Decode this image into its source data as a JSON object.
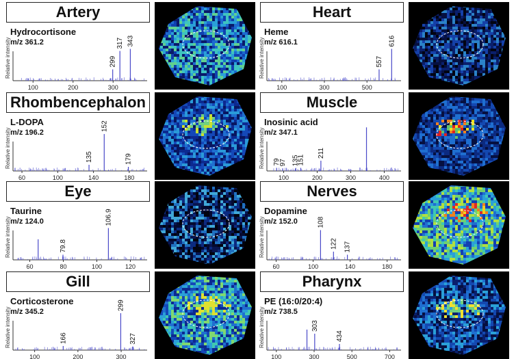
{
  "panels": [
    {
      "title": "Artery",
      "compound": "Hydrocortisone",
      "mz": "m/z 361.2",
      "ylabel": "Relative intensity",
      "xticks": [
        {
          "v": 100,
          "label": "100"
        },
        {
          "v": 200,
          "label": "200"
        },
        {
          "v": 300,
          "label": "300"
        }
      ],
      "xrange": [
        50,
        385
      ],
      "peaks": [
        {
          "x": 299,
          "h": 0.22,
          "label": "299"
        },
        {
          "x": 317,
          "h": 0.58,
          "label": "317"
        },
        {
          "x": 343,
          "h": 0.62,
          "label": "343"
        }
      ],
      "tissue": {
        "colors": [
          "#0a1a6a",
          "#1040b0",
          "#1c6ad0",
          "#2aa0d8",
          "#3ec4c0",
          "#60d090"
        ],
        "hot": []
      }
    },
    {
      "title": "Heart",
      "compound": "Heme",
      "mz": "m/z 616.1",
      "ylabel": "Relative intensity",
      "xticks": [
        {
          "v": 100,
          "label": "100"
        },
        {
          "v": 300,
          "label": "300"
        },
        {
          "v": 500,
          "label": "500"
        }
      ],
      "xrange": [
        30,
        660
      ],
      "peaks": [
        {
          "x": 557,
          "h": 0.22,
          "label": "557"
        },
        {
          "x": 616,
          "h": 0.62,
          "label": "616"
        }
      ],
      "tissue": {
        "colors": [
          "#020412",
          "#061040",
          "#0a1f6c",
          "#1540a8",
          "#2b82c8"
        ],
        "hot": []
      }
    },
    {
      "title": "Rhombencephalon",
      "compound": "L-DOPA",
      "mz": "m/z 196.2",
      "ylabel": "Relative intensity",
      "xticks": [
        {
          "v": 60,
          "label": "60"
        },
        {
          "v": 100,
          "label": "100"
        },
        {
          "v": 140,
          "label": "140"
        },
        {
          "v": 180,
          "label": "180"
        }
      ],
      "xrange": [
        50,
        200
      ],
      "peaks": [
        {
          "x": 135,
          "h": 0.12,
          "label": "135"
        },
        {
          "x": 152,
          "h": 0.72,
          "label": "152"
        },
        {
          "x": 179,
          "h": 0.08,
          "label": "179"
        }
      ],
      "tissue": {
        "colors": [
          "#081660",
          "#0c2a90",
          "#1448b8",
          "#1f6fd0",
          "#2a9ad8"
        ],
        "hot": [
          "#70d080",
          "#c8e030"
        ]
      }
    },
    {
      "title": "Muscle",
      "compound": "Inosinic acid",
      "mz": "m/z 347.1",
      "ylabel": "Relative intensity",
      "xticks": [
        {
          "v": 100,
          "label": "100"
        },
        {
          "v": 200,
          "label": "200"
        },
        {
          "v": 300,
          "label": "300"
        },
        {
          "v": 400,
          "label": "400"
        }
      ],
      "xrange": [
        50,
        450
      ],
      "peaks": [
        {
          "x": 79,
          "h": 0.06,
          "label": "79"
        },
        {
          "x": 97,
          "h": 0.05,
          "label": "97"
        },
        {
          "x": 135,
          "h": 0.05,
          "label": "135"
        },
        {
          "x": 151,
          "h": 0.06,
          "label": "151"
        },
        {
          "x": 211,
          "h": 0.2,
          "label": "211"
        },
        {
          "x": 347,
          "h": 0.85,
          "label": ""
        }
      ],
      "tissue": {
        "colors": [
          "#061040",
          "#0c2a80",
          "#1448b0",
          "#1f6fd0"
        ],
        "hot": [
          "#f0e020",
          "#f08020",
          "#e02020",
          "#60c070"
        ]
      }
    },
    {
      "title": "Eye",
      "compound": "Taurine",
      "mz": "m/z 124.0",
      "ylabel": "Relative intensity",
      "xticks": [
        {
          "v": 60,
          "label": "60"
        },
        {
          "v": 80,
          "label": "80"
        },
        {
          "v": 100,
          "label": "100"
        },
        {
          "v": 120,
          "label": "120"
        }
      ],
      "xrange": [
        50,
        130
      ],
      "peaks": [
        {
          "x": 65,
          "h": 0.4,
          "label": ""
        },
        {
          "x": 79.8,
          "h": 0.1,
          "label": "79.8"
        },
        {
          "x": 106.9,
          "h": 0.62,
          "label": "106.9"
        }
      ],
      "tissue": {
        "colors": [
          "#020410",
          "#040a30",
          "#081550",
          "#0c2a80",
          "#2070c0",
          "#40a8d8"
        ],
        "hot": []
      }
    },
    {
      "title": "Nerves",
      "compound": "Dopamine",
      "mz": "m/z 152.0",
      "ylabel": "Relative intensity",
      "xticks": [
        {
          "v": 60,
          "label": "60"
        },
        {
          "v": 100,
          "label": "100"
        },
        {
          "v": 140,
          "label": "140"
        },
        {
          "v": 180,
          "label": "180"
        }
      ],
      "xrange": [
        50,
        195
      ],
      "peaks": [
        {
          "x": 108,
          "h": 0.58,
          "label": "108"
        },
        {
          "x": 122,
          "h": 0.16,
          "label": "122"
        },
        {
          "x": 137,
          "h": 0.1,
          "label": "137"
        }
      ],
      "tissue": {
        "colors": [
          "#1440b0",
          "#1f6fd0",
          "#2aa0d8",
          "#40c8b0",
          "#70d070",
          "#b0e040"
        ],
        "hot": [
          "#f0d020",
          "#f08020",
          "#e02828"
        ]
      }
    },
    {
      "title": "Gill",
      "compound": "Corticosterone",
      "mz": "m/z 345.2",
      "ylabel": "Relative intensity",
      "xticks": [
        {
          "v": 100,
          "label": "100"
        },
        {
          "v": 200,
          "label": "200"
        },
        {
          "v": 300,
          "label": "300"
        }
      ],
      "xrange": [
        50,
        360
      ],
      "peaks": [
        {
          "x": 166,
          "h": 0.08,
          "label": "166"
        },
        {
          "x": 299,
          "h": 0.72,
          "label": "299"
        },
        {
          "x": 327,
          "h": 0.07,
          "label": "327"
        }
      ],
      "tissue": {
        "colors": [
          "#0c2a90",
          "#1448b8",
          "#1f6fd0",
          "#2aa0d8",
          "#40c8b0",
          "#80d870"
        ],
        "hot": [
          "#e0e030"
        ]
      }
    },
    {
      "title": "Pharynx",
      "compound": "PE (16:0/20:4)",
      "mz": "m/z 738.5",
      "ylabel": "Relative intensity",
      "xticks": [
        {
          "v": 100,
          "label": "100"
        },
        {
          "v": 300,
          "label": "300"
        },
        {
          "v": 500,
          "label": "500"
        },
        {
          "v": 700,
          "label": "700"
        }
      ],
      "xrange": [
        50,
        760
      ],
      "peaks": [
        {
          "x": 262,
          "h": 0.4,
          "label": ""
        },
        {
          "x": 303,
          "h": 0.32,
          "label": "303"
        },
        {
          "x": 434,
          "h": 0.12,
          "label": "434"
        },
        {
          "x": 738.5,
          "h": 0.05,
          "label": ""
        }
      ],
      "tissue": {
        "colors": [
          "#061040",
          "#0a1f6c",
          "#1448b0",
          "#1f6fd0",
          "#2aa0d8"
        ],
        "hot": [
          "#f0e030",
          "#70d080"
        ]
      }
    }
  ]
}
